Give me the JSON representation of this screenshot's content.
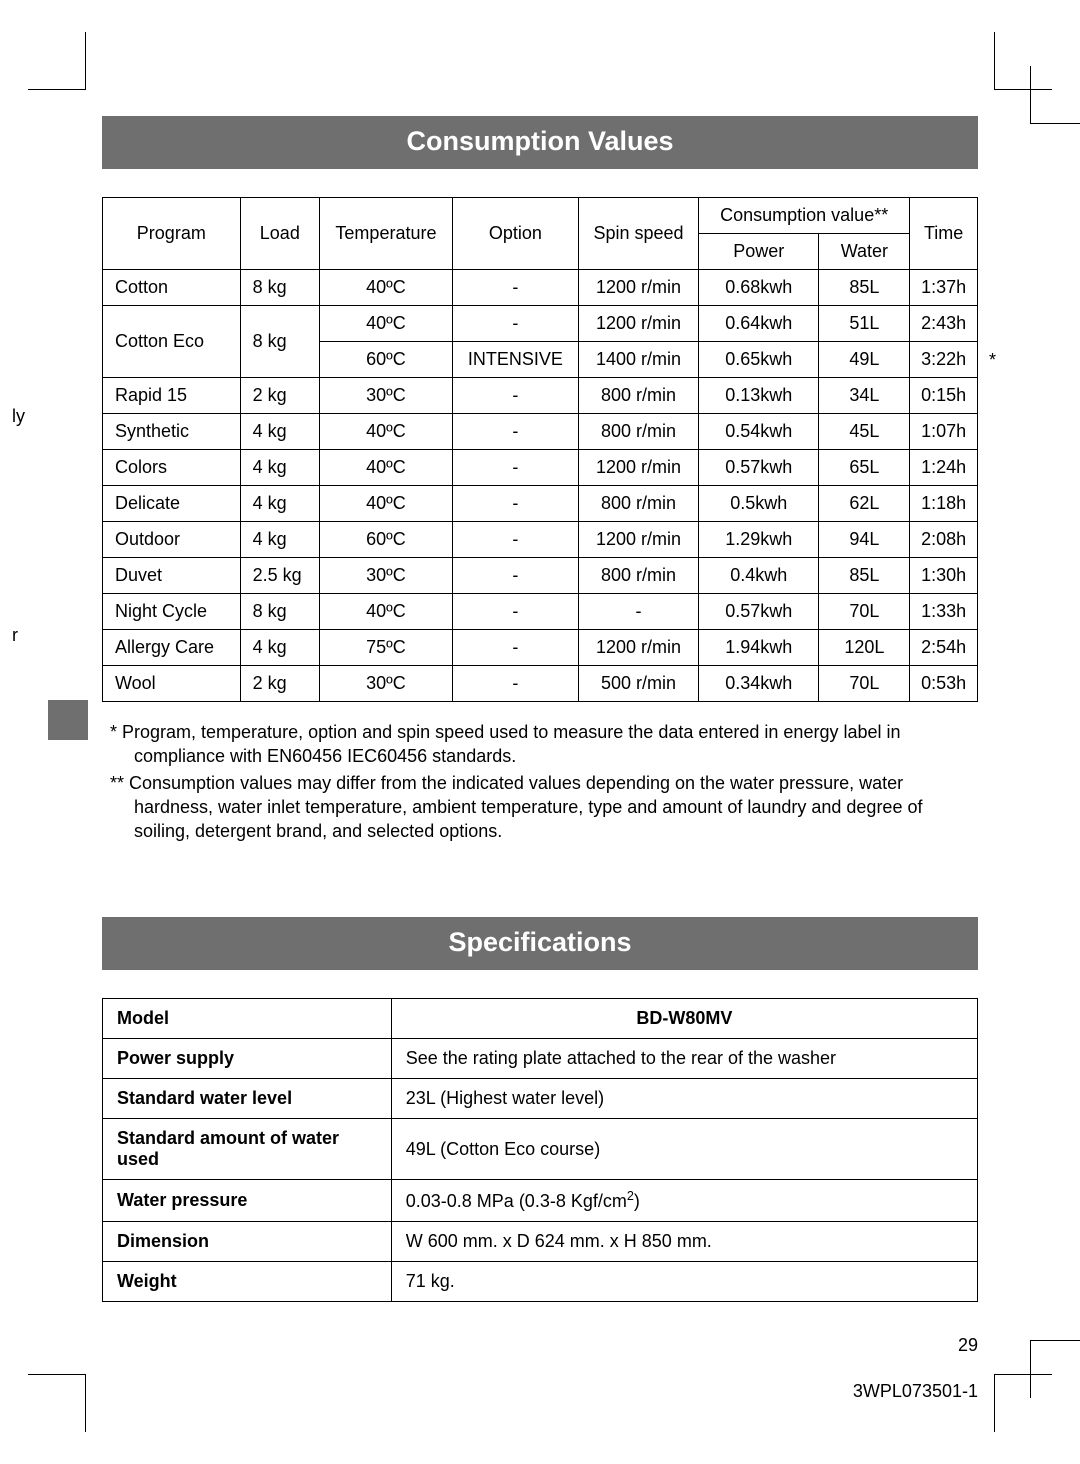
{
  "headers": {
    "consumption": "Consumption Values",
    "specifications": "Specifications"
  },
  "consumption_table": {
    "cols": {
      "program": "Program",
      "load": "Load",
      "temperature": "Temperature",
      "option": "Option",
      "spin_speed": "Spin speed",
      "consumption_value": "Consumption value**",
      "power": "Power",
      "water": "Water",
      "time": "Time"
    },
    "rows": [
      {
        "program": "Cotton",
        "load": "8 kg",
        "temp": "40ºC",
        "option": "-",
        "spin": "1200 r/min",
        "power": "0.68kwh",
        "water": "85L",
        "time": "1:37h",
        "star": false
      },
      {
        "program": "Cotton Eco",
        "load": "8 kg",
        "temp": "40ºC",
        "option": "-",
        "spin": "1200 r/min",
        "power": "0.64kwh",
        "water": "51L",
        "time": "2:43h",
        "star": false,
        "rowspan_prog": 2
      },
      {
        "program": "",
        "load": "",
        "temp": "60ºC",
        "option": "INTENSIVE",
        "spin": "1400 r/min",
        "power": "0.65kwh",
        "water": "49L",
        "time": "3:22h",
        "star": true
      },
      {
        "program": "Rapid 15",
        "load": "2 kg",
        "temp": "30ºC",
        "option": "-",
        "spin": "800 r/min",
        "power": "0.13kwh",
        "water": "34L",
        "time": "0:15h",
        "star": false
      },
      {
        "program": "Synthetic",
        "load": "4 kg",
        "temp": "40ºC",
        "option": "-",
        "spin": "800 r/min",
        "power": "0.54kwh",
        "water": "45L",
        "time": "1:07h",
        "star": false
      },
      {
        "program": "Colors",
        "load": "4 kg",
        "temp": "40ºC",
        "option": "-",
        "spin": "1200 r/min",
        "power": "0.57kwh",
        "water": "65L",
        "time": "1:24h",
        "star": false
      },
      {
        "program": "Delicate",
        "load": "4 kg",
        "temp": "40ºC",
        "option": "-",
        "spin": "800 r/min",
        "power": "0.5kwh",
        "water": "62L",
        "time": "1:18h",
        "star": false
      },
      {
        "program": "Outdoor",
        "load": "4 kg",
        "temp": "60ºC",
        "option": "-",
        "spin": "1200 r/min",
        "power": "1.29kwh",
        "water": "94L",
        "time": "2:08h",
        "star": false
      },
      {
        "program": "Duvet",
        "load": "2.5 kg",
        "temp": "30ºC",
        "option": "-",
        "spin": "800 r/min",
        "power": "0.4kwh",
        "water": "85L",
        "time": "1:30h",
        "star": false
      },
      {
        "program": "Night Cycle",
        "load": "8 kg",
        "temp": "40ºC",
        "option": "-",
        "spin": "-",
        "power": "0.57kwh",
        "water": "70L",
        "time": "1:33h",
        "star": false
      },
      {
        "program": "Allergy Care",
        "load": "4 kg",
        "temp": "75ºC",
        "option": "-",
        "spin": "1200 r/min",
        "power": "1.94kwh",
        "water": "120L",
        "time": "2:54h",
        "star": false
      },
      {
        "program": "Wool",
        "load": "2 kg",
        "temp": "30ºC",
        "option": "-",
        "spin": "500 r/min",
        "power": "0.34kwh",
        "water": "70L",
        "time": "0:53h",
        "star": false
      }
    ]
  },
  "footnotes": {
    "n1": "* Program, temperature, option and spin speed used to measure the data entered in energy label in compliance with EN60456 IEC60456 standards.",
    "n2": "** Consumption values may differ from the indicated values depending on the water pressure, water hardness, water inlet temperature, ambient temperature, type and amount of laundry and degree of soiling, detergent brand, and selected options."
  },
  "spec_table": {
    "rows": [
      {
        "label": "Model",
        "value": "BD-W80MV",
        "bold_center": true
      },
      {
        "label": "Power supply",
        "value": "See the rating plate attached to the rear of the washer"
      },
      {
        "label": "Standard water level",
        "value": "23L (Highest water level)"
      },
      {
        "label": "Standard amount of water used",
        "value": "49L (Cotton Eco course)"
      },
      {
        "label": "Water pressure",
        "value": "0.03-0.8 MPa (0.3-8 Kgf/cm²)",
        "html_sup": true
      },
      {
        "label": "Dimension",
        "value": "W 600 mm. x D 624 mm. x H 850 mm."
      },
      {
        "label": "Weight",
        "value": "71 kg."
      }
    ]
  },
  "page_number": "29",
  "doc_code": "3WPL073501-1",
  "side": {
    "ly": "ly",
    "r": "r"
  },
  "colors": {
    "header_bg": "#6f6f6f",
    "header_fg": "#ffffff",
    "border": "#000000",
    "text": "#000000",
    "bg": "#ffffff"
  },
  "typography": {
    "header_fontsize": 27,
    "body_fontsize": 18,
    "font_family": "Arial"
  }
}
